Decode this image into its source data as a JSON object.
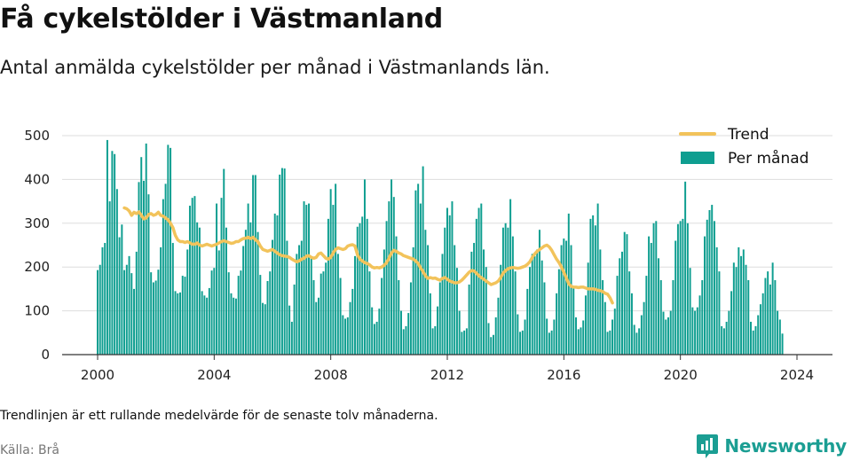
{
  "title": "Få cykelstölder i Västmanland",
  "subtitle": "Antal anmälda cykelstölder per månad i Västmanlands län.",
  "note": "Trendlinjen är ett rullande medelvärde för de senaste tolv månaderna.",
  "source": "Källa: Brå",
  "brand": "Newsworthy",
  "colors": {
    "bars": "#0e9e90",
    "trend": "#f2c35b",
    "brand": "#1b9e93",
    "grid": "#dddddd"
  },
  "chart_data": {
    "type": "bar",
    "x_start": "2000-01",
    "x_ticks": [
      "2000",
      "2004",
      "2008",
      "2012",
      "2016",
      "2020",
      "2024"
    ],
    "y_ticks": [
      0,
      100,
      200,
      300,
      400,
      500
    ],
    "ylim": [
      0,
      500
    ],
    "grid": true,
    "legend_position": "top-right",
    "series": [
      {
        "name": "Per månad",
        "kind": "bar",
        "values": [
          193,
          205,
          245,
          255,
          490,
          350,
          465,
          458,
          378,
          268,
          297,
          193,
          205,
          225,
          186,
          150,
          235,
          394,
          451,
          397,
          482,
          366,
          188,
          165,
          169,
          194,
          245,
          355,
          390,
          479,
          472,
          255,
          145,
          140,
          142,
          180,
          178,
          240,
          340,
          358,
          362,
          302,
          290,
          145,
          135,
          130,
          152,
          192,
          198,
          345,
          238,
          358,
          424,
          290,
          188,
          140,
          130,
          128,
          180,
          192,
          248,
          285,
          345,
          302,
          410,
          410,
          280,
          182,
          118,
          115,
          168,
          190,
          262,
          322,
          318,
          411,
          426,
          425,
          260,
          112,
          75,
          160,
          230,
          250,
          260,
          350,
          342,
          345,
          220,
          170,
          120,
          130,
          185,
          190,
          210,
          310,
          378,
          342,
          390,
          230,
          175,
          90,
          82,
          85,
          120,
          150,
          225,
          292,
          300,
          315,
          400,
          310,
          190,
          108,
          70,
          75,
          105,
          175,
          240,
          305,
          350,
          400,
          360,
          270,
          170,
          100,
          58,
          65,
          95,
          165,
          245,
          375,
          390,
          345,
          430,
          285,
          250,
          140,
          60,
          65,
          110,
          165,
          230,
          290,
          335,
          318,
          350,
          250,
          198,
          100,
          52,
          55,
          60,
          160,
          235,
          255,
          310,
          335,
          345,
          240,
          200,
          72,
          40,
          45,
          85,
          130,
          205,
          290,
          300,
          290,
          355,
          270,
          190,
          92,
          52,
          55,
          80,
          150,
          200,
          230,
          225,
          240,
          285,
          215,
          165,
          82,
          50,
          55,
          80,
          140,
          195,
          250,
          265,
          260,
          322,
          250,
          155,
          85,
          58,
          62,
          78,
          135,
          210,
          310,
          318,
          295,
          345,
          240,
          170,
          120,
          52,
          55,
          80,
          105,
          180,
          220,
          235,
          280,
          275,
          190,
          140,
          68,
          50,
          60,
          90,
          120,
          180,
          270,
          255,
          300,
          305,
          220,
          170,
          98,
          80,
          85,
          100,
          170,
          260,
          298,
          305,
          310,
          395,
          300,
          198,
          108,
          100,
          108,
          135,
          170,
          270,
          308,
          330,
          342,
          305,
          245,
          190,
          65,
          60,
          75,
          100,
          145,
          210,
          200,
          245,
          225,
          240,
          205,
          170,
          75,
          55,
          65,
          90,
          115,
          140,
          175,
          190,
          160,
          210,
          170,
          100,
          80,
          48
        ],
        "values_note_end": "2023-12 ~78, 2024-01 ~48"
      },
      {
        "name": "Trend",
        "kind": "line",
        "start": "2000-12",
        "values": [
          335,
          333,
          328,
          318,
          325,
          322,
          326,
          318,
          310,
          312,
          320,
          322,
          318,
          320,
          325,
          318,
          316,
          312,
          308,
          300,
          290,
          272,
          262,
          258,
          258,
          256,
          258,
          255,
          252,
          252,
          255,
          250,
          248,
          250,
          252,
          250,
          248,
          250,
          252,
          255,
          258,
          260,
          258,
          256,
          254,
          255,
          258,
          258,
          262,
          265,
          266,
          268,
          265,
          268,
          262,
          258,
          248,
          240,
          238,
          236,
          238,
          240,
          236,
          232,
          228,
          226,
          225,
          224,
          222,
          218,
          215,
          212,
          214,
          218,
          220,
          225,
          226,
          222,
          220,
          222,
          230,
          232,
          226,
          220,
          218,
          222,
          232,
          240,
          244,
          242,
          240,
          242,
          248,
          250,
          251,
          248,
          228,
          218,
          214,
          210,
          208,
          205,
          200,
          198,
          199,
          198,
          200,
          204,
          210,
          220,
          232,
          238,
          236,
          232,
          230,
          226,
          224,
          222,
          220,
          218,
          214,
          208,
          198,
          190,
          180,
          174,
          176,
          174,
          175,
          172,
          170,
          174,
          176,
          172,
          168,
          166,
          164,
          164,
          166,
          170,
          176,
          182,
          188,
          192,
          191,
          186,
          180,
          176,
          172,
          168,
          164,
          160,
          162,
          164,
          168,
          176,
          186,
          192,
          196,
          198,
          199,
          198,
          197,
          198,
          200,
          202,
          206,
          212,
          222,
          230,
          236,
          240,
          244,
          248,
          250,
          246,
          238,
          228,
          218,
          210,
          200,
          188,
          175,
          162,
          156,
          154,
          154,
          153,
          154,
          154,
          152,
          150,
          150,
          150,
          149,
          147,
          146,
          144,
          140,
          138,
          130,
          118
        ]
      }
    ]
  }
}
